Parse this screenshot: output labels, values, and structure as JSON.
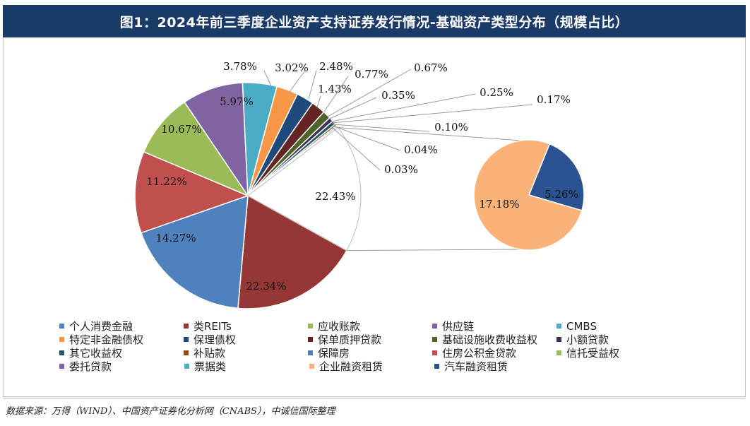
{
  "title": "图1：2024年前三季度企业资产支持证券发行情况-基础资产类型分布（规模占比）",
  "source": "数据来源：万得（WIND）、中国资产证券化分析网（CNABS），中诚信国际整理",
  "chart_data": {
    "type": "pie",
    "subtype": "pie-of-pie",
    "categories": [
      "个人消费金融",
      "类REITs",
      "应收账款",
      "供应链",
      "CMBS",
      "特定非金融债权",
      "保理债权",
      "保单质押贷款",
      "基础设施收费收益权",
      "小额贷款",
      "其它收益权",
      "补贴款",
      "保障房",
      "住房公积金贷款",
      "信托受益权",
      "委托贷款",
      "票据类",
      "企业融资租赁",
      "汽车融资租赁"
    ],
    "values": [
      22.34,
      22.43,
      11.22,
      10.67,
      5.97,
      3.78,
      3.02,
      2.48,
      1.43,
      0.77,
      0.67,
      0.35,
      0.25,
      0.17,
      0.1,
      0.04,
      0.03,
      17.18,
      5.26
    ],
    "labels": [
      "22.34%",
      "22.43%",
      "11.22%",
      "10.67%",
      "5.97%",
      "3.78%",
      "3.02%",
      "2.48%",
      "1.43%",
      "0.77%",
      "0.67%",
      "0.35%",
      "0.25%",
      "0.17%",
      "0.10%",
      "0.04%",
      "0.03%",
      "17.18%",
      "5.26%"
    ],
    "colors": [
      "#4f81bd",
      "#953735",
      "#9bbb59",
      "#8064a2",
      "#4bacc6",
      "#f79646",
      "#1f497d",
      "#632523",
      "#4f6228",
      "#3f3151",
      "#215968",
      "#984807",
      "#4f81bd",
      "#c0504d",
      "#9bbb59",
      "#8064a2",
      "#4bacc6",
      "#fab278",
      "#2c5391"
    ],
    "secondary_pie": [
      "企业融资租赁",
      "汽车融资租赁"
    ],
    "legend": [
      [
        "个人消费金融",
        "类REITs",
        "应收账款",
        "供应链",
        "CMBS"
      ],
      [
        "特定非金融债权",
        "保理债权",
        "保单质押贷款",
        "基础设施收费收益权",
        "小额贷款"
      ],
      [
        "其它收益权",
        "补贴款",
        "保障房",
        "住房公积金贷款",
        "信托受益权"
      ],
      [
        "委托贷款",
        "票据类",
        "企业融资租赁",
        "汽车融资租赁"
      ]
    ]
  }
}
